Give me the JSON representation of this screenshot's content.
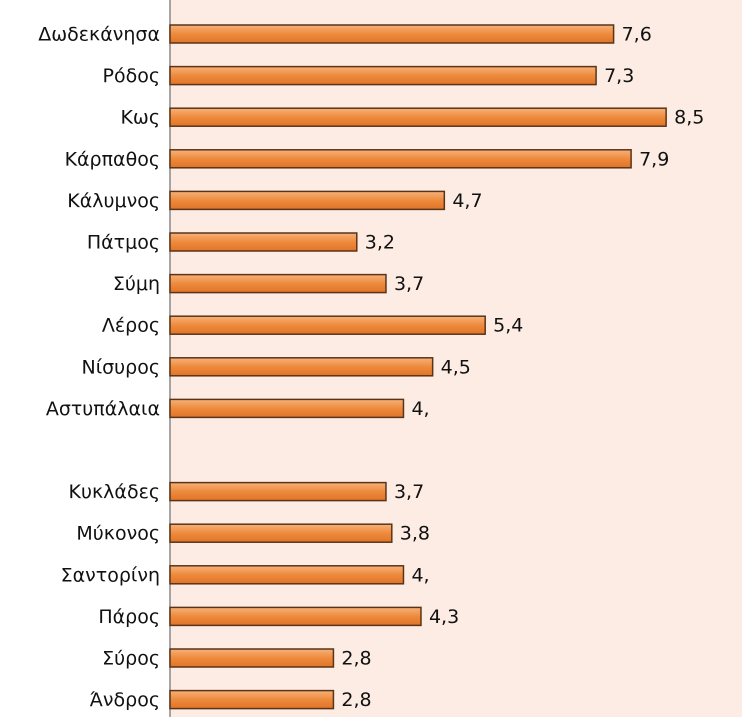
{
  "chart_data": {
    "type": "barh",
    "categories": [
      "Δωδεκάνησα",
      "Ρόδος",
      "Κως",
      "Κάρπαθος",
      "Κάλυμνος",
      "Πάτμος",
      "Σύμη",
      "Λέρος",
      "Νίσυρος",
      "Αστυπάλαια",
      null,
      "Κυκλάδες",
      "Μύκονος",
      "Σαντορίνη",
      "Πάρος",
      "Σύρος",
      "Άνδρος"
    ],
    "values": [
      7.6,
      7.3,
      8.5,
      7.9,
      4.7,
      3.2,
      3.7,
      5.4,
      4.5,
      4.0,
      null,
      3.7,
      3.8,
      4.0,
      4.3,
      2.8,
      2.8
    ],
    "value_labels": [
      "7,6",
      "7,3",
      "8,5",
      "7,9",
      "4,7",
      "3,2",
      "3,7",
      "5,4",
      "4,5",
      "4,",
      null,
      "3,7",
      "3,8",
      "4,",
      "4,3",
      "2,8",
      "2,8"
    ],
    "color": "#ee8a3c",
    "xlim": [
      0,
      9.8
    ]
  }
}
